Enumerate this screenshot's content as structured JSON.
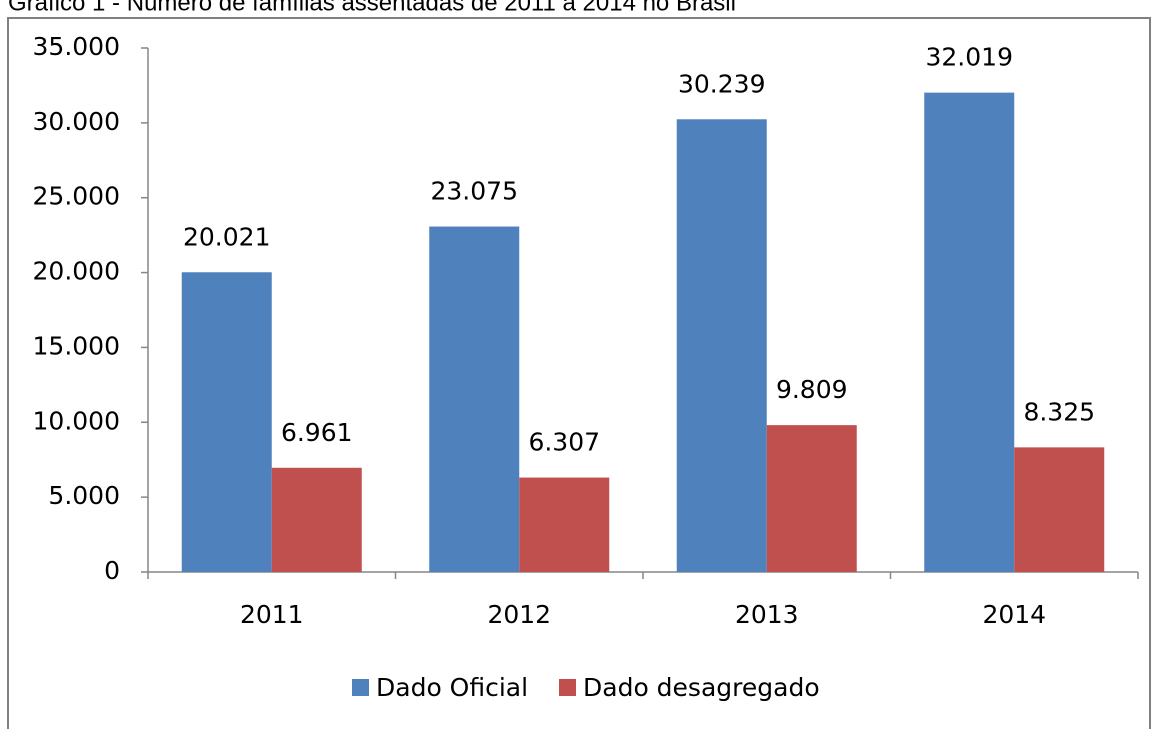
{
  "chart_data": {
    "type": "bar",
    "title": "Gráfico 1 - Número de famílias assentadas de 2011 a 2014 no Brasil",
    "categories": [
      "2011",
      "2012",
      "2013",
      "2014"
    ],
    "series": [
      {
        "name": "Dado Oficial",
        "color": "#4f81bd",
        "values": [
          20021,
          23075,
          30239,
          32019
        ],
        "value_labels": [
          "20.021",
          "23.075",
          "30.239",
          "32.019"
        ]
      },
      {
        "name": "Dado desagregado",
        "color": "#c0504d",
        "values": [
          6961,
          6307,
          9809,
          8325
        ],
        "value_labels": [
          "6.961",
          "6.307",
          "9.809",
          "8.325"
        ]
      }
    ],
    "ylim": [
      0,
      35000
    ],
    "yticks": [
      {
        "value": 0,
        "label": "0"
      },
      {
        "value": 5000,
        "label": "5.000"
      },
      {
        "value": 10000,
        "label": "10.000"
      },
      {
        "value": 15000,
        "label": "15.000"
      },
      {
        "value": 20000,
        "label": "20.000"
      },
      {
        "value": 25000,
        "label": "25.000"
      },
      {
        "value": 30000,
        "label": "30.000"
      },
      {
        "value": 35000,
        "label": "35.000"
      }
    ],
    "grid": false,
    "legend": "bottom"
  }
}
